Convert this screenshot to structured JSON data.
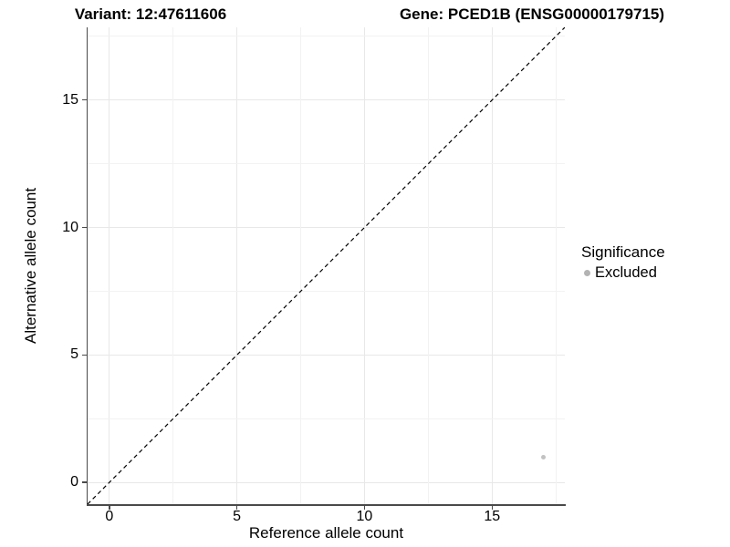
{
  "chart_data": {
    "type": "scatter",
    "titles": {
      "left": "Variant: 12:47611606",
      "right": "Gene: PCED1B (ENSG00000179715)"
    },
    "xlabel": "Reference allele count",
    "ylabel": "Alternative allele count",
    "xlim": [
      -0.85,
      17.85
    ],
    "ylim": [
      -0.85,
      17.85
    ],
    "x_ticks": [
      0,
      5,
      10,
      15
    ],
    "y_ticks": [
      0,
      5,
      10,
      15
    ],
    "x_minor_ticks": [
      2.5,
      7.5,
      12.5,
      17.5
    ],
    "y_minor_ticks": [
      2.5,
      7.5,
      12.5,
      17.5
    ],
    "grid": "major and minor gridlines, white background",
    "points": [
      {
        "x": 17,
        "y": 1,
        "series": "Excluded"
      }
    ],
    "reference_line": {
      "slope": 1,
      "intercept": 0,
      "style": "dashed",
      "color": "#000000"
    },
    "legend": {
      "title": "Significance",
      "position": "right",
      "items": [
        {
          "label": "Excluded",
          "color": "#b3b3b3",
          "marker": "circle"
        }
      ]
    },
    "colors": {
      "point": "#c2c2c2",
      "grid_major": "#e8e8e8",
      "grid_minor": "#f2f2f2",
      "axis_line": "#4a4a4a",
      "background": "#ffffff",
      "text": "#000000"
    }
  }
}
